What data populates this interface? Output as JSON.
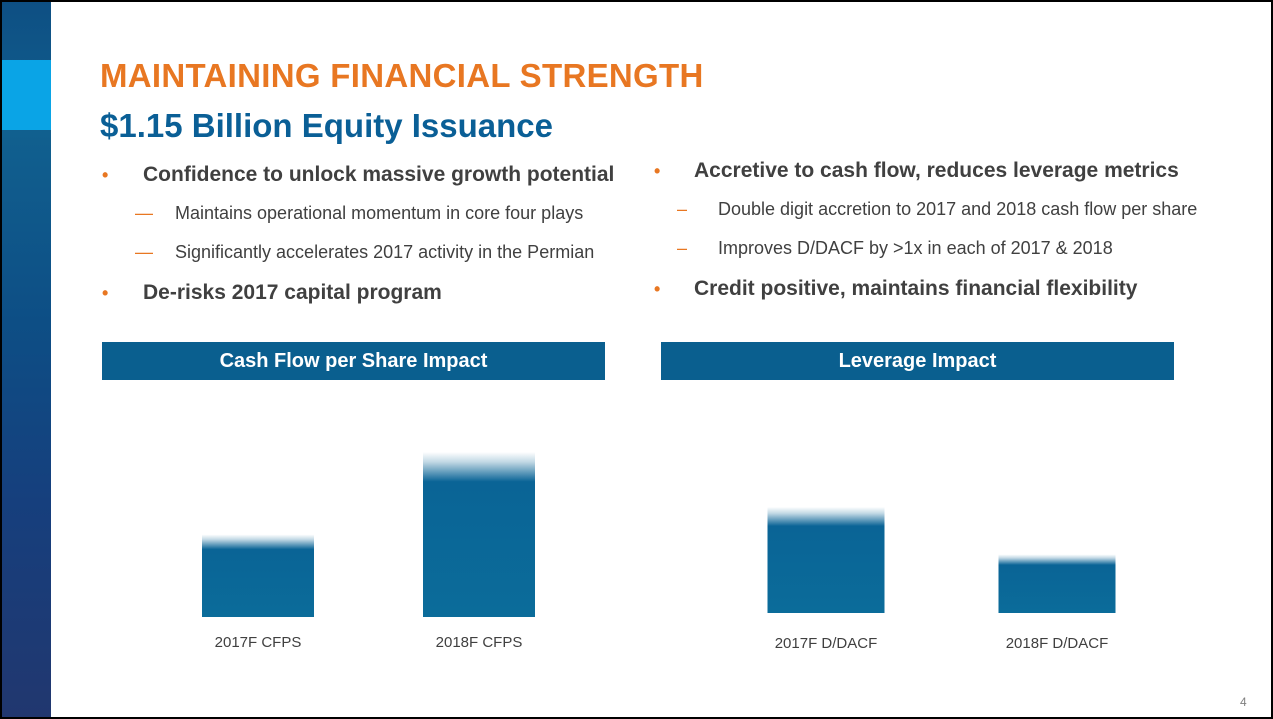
{
  "slide": {
    "title": "MAINTAINING FINANCIAL STRENGTH",
    "subtitle": "$1.15 Billion Equity Issuance",
    "page_number": "4",
    "colors": {
      "accent_orange": "#e87722",
      "brand_blue": "#0a5f8f",
      "side_bar_blue": "#0e4f83",
      "side_accent_cyan": "#0aa4e6"
    }
  },
  "left_bullets": [
    {
      "text": "Confidence to unlock massive growth potential",
      "sub": [
        "Maintains operational momentum in core four plays",
        "Significantly accelerates 2017 activity in the Permian"
      ]
    },
    {
      "text": "De-risks 2017 capital program",
      "sub": []
    }
  ],
  "right_bullets": [
    {
      "text": "Accretive to cash flow, reduces leverage metrics",
      "sub": [
        "Double digit accretion to 2017 and 2018 cash flow per share",
        "Improves D/DACF by >1x in each of 2017 & 2018"
      ]
    },
    {
      "text": "Credit positive, maintains financial flexibility",
      "sub": []
    }
  ],
  "chart_data": [
    {
      "type": "bar",
      "title": "Cash Flow per Share Impact",
      "categories": [
        "2017F CFPS",
        "2018F CFPS"
      ],
      "values": [
        8,
        16
      ],
      "ylim": [
        0,
        16
      ],
      "grid": false,
      "bar_color": "#0a6496"
    },
    {
      "type": "bar",
      "title": "Leverage Impact",
      "categories": [
        "2017F D/DACF",
        "2018F D/DACF"
      ],
      "values": [
        10.5,
        5.8
      ],
      "ylim": [
        0,
        10.5
      ],
      "grid": false,
      "bar_color": "#0a6496"
    }
  ]
}
